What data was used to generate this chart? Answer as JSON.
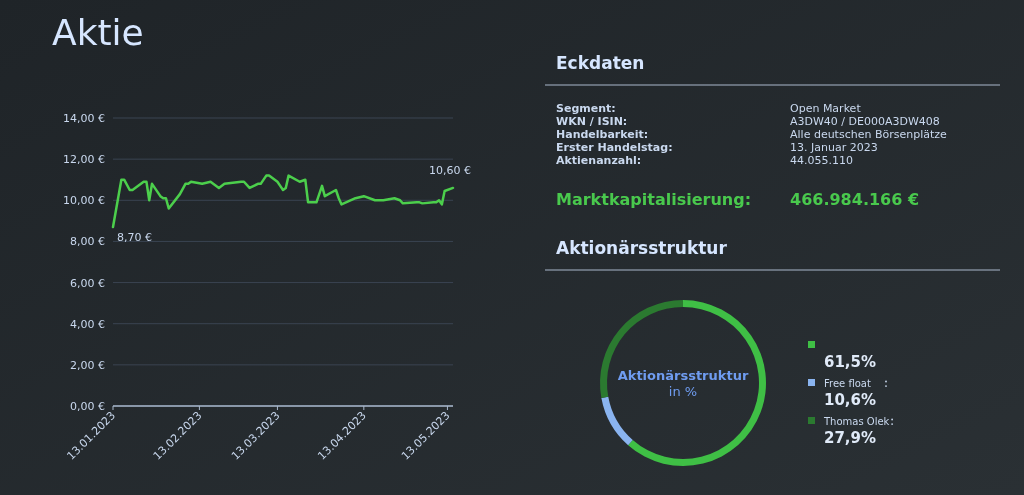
{
  "chart_data": [
    {
      "type": "line",
      "title": "Aktie",
      "x": [
        "2023-01-13",
        "2023-01-16",
        "2023-01-17",
        "2023-01-19",
        "2023-01-20",
        "2023-01-24",
        "2023-01-25",
        "2023-01-26",
        "2023-01-27",
        "2023-01-30",
        "2023-01-31",
        "2023-02-01",
        "2023-02-02",
        "2023-02-06",
        "2023-02-08",
        "2023-02-09",
        "2023-02-10",
        "2023-02-14",
        "2023-02-17",
        "2023-02-20",
        "2023-02-22",
        "2023-02-28",
        "2023-03-01",
        "2023-03-03",
        "2023-03-06",
        "2023-03-07",
        "2023-03-09",
        "2023-03-10",
        "2023-03-13",
        "2023-03-14",
        "2023-03-15",
        "2023-03-16",
        "2023-03-17",
        "2023-03-21",
        "2023-03-23",
        "2023-03-24",
        "2023-03-27",
        "2023-03-29",
        "2023-03-30",
        "2023-04-03",
        "2023-04-04",
        "2023-04-05",
        "2023-04-10",
        "2023-04-13",
        "2023-04-17",
        "2023-04-20",
        "2023-04-24",
        "2023-04-26",
        "2023-04-27",
        "2023-05-02",
        "2023-05-03",
        "2023-05-04",
        "2023-05-08",
        "2023-05-09",
        "2023-05-10",
        "2023-05-11",
        "2023-05-12",
        "2023-05-15"
      ],
      "series": [
        {
          "color": "#4ccf4c",
          "values": [
            8.7,
            11.0,
            11.0,
            10.5,
            10.5,
            10.9,
            10.9,
            10.0,
            10.8,
            10.2,
            10.1,
            10.1,
            9.6,
            10.3,
            10.8,
            10.8,
            10.9,
            10.8,
            10.9,
            10.6,
            10.8,
            10.9,
            10.9,
            10.6,
            10.8,
            10.8,
            11.2,
            11.2,
            10.9,
            10.7,
            10.5,
            10.6,
            11.2,
            10.9,
            11.0,
            9.9,
            9.9,
            10.7,
            10.2,
            10.5,
            10.1,
            9.8,
            10.1,
            10.2,
            10.0,
            10.0,
            10.1,
            10.0,
            9.85,
            9.9,
            9.9,
            9.85,
            9.9,
            9.9,
            10.0,
            9.8,
            10.45,
            10.6
          ]
        }
      ],
      "xlim": [
        "2023-01-13",
        "2023-05-15"
      ],
      "xticks": [
        {
          "value": "2023-01-13",
          "label": "13.01.2023"
        },
        {
          "value": "2023-02-13",
          "label": "13.02.2023"
        },
        {
          "value": "2023-03-13",
          "label": "13.03.2023"
        },
        {
          "value": "2023-04-13",
          "label": "13.04.2023"
        },
        {
          "value": "2023-05-13",
          "label": "13.05.2023"
        }
      ],
      "ylim": [
        0,
        14
      ],
      "yticks": [
        {
          "value": 0,
          "label": "0,00 €"
        },
        {
          "value": 2,
          "label": "2,00 €"
        },
        {
          "value": 4,
          "label": "4,00 €"
        },
        {
          "value": 6,
          "label": "6,00 €"
        },
        {
          "value": 8,
          "label": "8,00 €"
        },
        {
          "value": 10,
          "label": "10,00 €"
        },
        {
          "value": 12,
          "label": "12,00 €"
        },
        {
          "value": 14,
          "label": "14,00 €"
        }
      ],
      "grid": "y",
      "legend": false,
      "marker": "none",
      "line_style": "solid",
      "annotations": [
        {
          "text": "8,70 €",
          "x": "2023-01-13",
          "y": 8.7
        },
        {
          "text": "10,60 €",
          "x": "2023-05-15",
          "y": 10.6
        }
      ]
    },
    {
      "type": "other",
      "title": "Eckdaten",
      "annotations": [
        "Segment:",
        "Open Market",
        "WKN / ISIN:",
        "A3DW40 / DE000A3DW408",
        "Handelbarkeit:",
        "Alle deutschen Börsenplätze",
        "Erster Handelstag:",
        "13. Januar 2023",
        "Aktienanzahl:",
        "44.055.110",
        "Marktkapitalisierung:",
        "466.984.166 €"
      ]
    },
    {
      "type": "donut",
      "title": "Aktionärsstruktur",
      "subtitle": "Aktionärsstruktur in %",
      "categories": [
        null,
        "Free float",
        "Thomas Olek"
      ],
      "values": [
        61.5,
        10.6,
        27.9
      ],
      "colors": [
        "#3fbf45",
        "#8ab4f0",
        "#2b7a30"
      ],
      "value_labels": [
        "61,5%",
        "10,6%",
        "27,9%"
      ],
      "legend": "right"
    }
  ]
}
